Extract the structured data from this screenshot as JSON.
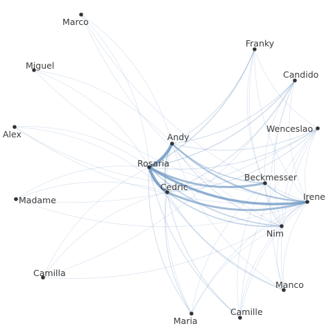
{
  "diagram": {
    "type": "network",
    "edge_color": "#6f98c4",
    "node_color": "#333333",
    "label_color": "#3a3a3a"
  },
  "nodes": [
    {
      "id": "marco",
      "label": "Marco"
    },
    {
      "id": "franky",
      "label": "Franky"
    },
    {
      "id": "miguel",
      "label": "Miguel"
    },
    {
      "id": "candido",
      "label": "Candido"
    },
    {
      "id": "alex",
      "label": "Alex"
    },
    {
      "id": "wenceslao",
      "label": "Wenceslao"
    },
    {
      "id": "andy",
      "label": "Andy"
    },
    {
      "id": "rosaria",
      "label": "Rosaria"
    },
    {
      "id": "beckmesser",
      "label": "Beckmesser"
    },
    {
      "id": "cedric",
      "label": "Cedric"
    },
    {
      "id": "irene",
      "label": "Irene"
    },
    {
      "id": "madame",
      "label": "Madame"
    },
    {
      "id": "nim",
      "label": "Nim"
    },
    {
      "id": "camilla",
      "label": "Camilla"
    },
    {
      "id": "manco",
      "label": "Manco"
    },
    {
      "id": "camille",
      "label": "Camille"
    },
    {
      "id": "maria",
      "label": "Maria"
    }
  ],
  "edges": [
    {
      "source": "rosaria",
      "target": "andy",
      "weight": 6
    },
    {
      "source": "rosaria",
      "target": "cedric",
      "weight": 6
    },
    {
      "source": "rosaria",
      "target": "irene",
      "weight": 5
    },
    {
      "source": "rosaria",
      "target": "beckmesser",
      "weight": 4
    },
    {
      "source": "andy",
      "target": "irene",
      "weight": 3
    },
    {
      "source": "andy",
      "target": "beckmesser",
      "weight": 2
    },
    {
      "source": "cedric",
      "target": "irene",
      "weight": 4
    },
    {
      "source": "cedric",
      "target": "nim",
      "weight": 2
    },
    {
      "source": "rosaria",
      "target": "nim",
      "weight": 2
    },
    {
      "source": "andy",
      "target": "cedric",
      "weight": 2
    },
    {
      "source": "beckmesser",
      "target": "irene",
      "weight": 2
    },
    {
      "source": "beckmesser",
      "target": "nim",
      "weight": 1
    },
    {
      "source": "irene",
      "target": "nim",
      "weight": 1
    },
    {
      "source": "rosaria",
      "target": "franky",
      "weight": 1.5
    },
    {
      "source": "andy",
      "target": "franky",
      "weight": 1
    },
    {
      "source": "rosaria",
      "target": "candido",
      "weight": 1.5
    },
    {
      "source": "andy",
      "target": "candido",
      "weight": 1
    },
    {
      "source": "cedric",
      "target": "candido",
      "weight": 1
    },
    {
      "source": "rosaria",
      "target": "wenceslao",
      "weight": 1
    },
    {
      "source": "andy",
      "target": "wenceslao",
      "weight": 1
    },
    {
      "source": "cedric",
      "target": "wenceslao",
      "weight": 1
    },
    {
      "source": "rosaria",
      "target": "manco",
      "weight": 1
    },
    {
      "source": "cedric",
      "target": "manco",
      "weight": 1
    },
    {
      "source": "rosaria",
      "target": "camille",
      "weight": 1
    },
    {
      "source": "cedric",
      "target": "camille",
      "weight": 1
    },
    {
      "source": "rosaria",
      "target": "maria",
      "weight": 1
    },
    {
      "source": "cedric",
      "target": "maria",
      "weight": 1
    },
    {
      "source": "rosaria",
      "target": "marco",
      "weight": 0.5
    },
    {
      "source": "rosaria",
      "target": "miguel",
      "weight": 0.5
    },
    {
      "source": "rosaria",
      "target": "alex",
      "weight": 0.5
    },
    {
      "source": "rosaria",
      "target": "madame",
      "weight": 0.5
    },
    {
      "source": "rosaria",
      "target": "camilla",
      "weight": 0.5
    },
    {
      "source": "andy",
      "target": "marco",
      "weight": 0.5
    },
    {
      "source": "andy",
      "target": "miguel",
      "weight": 0.5
    },
    {
      "source": "cedric",
      "target": "alex",
      "weight": 0.5
    },
    {
      "source": "cedric",
      "target": "madame",
      "weight": 0.5
    },
    {
      "source": "cedric",
      "target": "camilla",
      "weight": 0.5
    },
    {
      "source": "marco",
      "target": "nim",
      "weight": 0.5
    },
    {
      "source": "marco",
      "target": "irene",
      "weight": 0.5
    },
    {
      "source": "miguel",
      "target": "irene",
      "weight": 0.5
    },
    {
      "source": "alex",
      "target": "irene",
      "weight": 0.5
    },
    {
      "source": "alex",
      "target": "beckmesser",
      "weight": 0.5
    },
    {
      "source": "madame",
      "target": "irene",
      "weight": 0.5
    },
    {
      "source": "madame",
      "target": "wenceslao",
      "weight": 0.5
    },
    {
      "source": "camilla",
      "target": "irene",
      "weight": 0.5
    },
    {
      "source": "camilla",
      "target": "candido",
      "weight": 0.5
    },
    {
      "source": "franky",
      "target": "irene",
      "weight": 0.5
    },
    {
      "source": "franky",
      "target": "nim",
      "weight": 0.5
    },
    {
      "source": "franky",
      "target": "beckmesser",
      "weight": 0.5
    },
    {
      "source": "franky",
      "target": "wenceslao",
      "weight": 0.5
    },
    {
      "source": "candido",
      "target": "irene",
      "weight": 0.5
    },
    {
      "source": "candido",
      "target": "nim",
      "weight": 0.5
    },
    {
      "source": "candido",
      "target": "beckmesser",
      "weight": 0.5
    },
    {
      "source": "candido",
      "target": "manco",
      "weight": 0.5
    },
    {
      "source": "wenceslao",
      "target": "irene",
      "weight": 0.5
    },
    {
      "source": "wenceslao",
      "target": "nim",
      "weight": 0.5
    },
    {
      "source": "wenceslao",
      "target": "manco",
      "weight": 0.5
    },
    {
      "source": "wenceslao",
      "target": "camille",
      "weight": 0.5
    },
    {
      "source": "irene",
      "target": "manco",
      "weight": 0.5
    },
    {
      "source": "irene",
      "target": "camille",
      "weight": 0.5
    },
    {
      "source": "irene",
      "target": "maria",
      "weight": 0.5
    },
    {
      "source": "nim",
      "target": "manco",
      "weight": 0.5
    },
    {
      "source": "nim",
      "target": "camille",
      "weight": 0.5
    },
    {
      "source": "nim",
      "target": "maria",
      "weight": 0.5
    },
    {
      "source": "beckmesser",
      "target": "maria",
      "weight": 0.5
    },
    {
      "source": "beckmesser",
      "target": "camille",
      "weight": 0.5
    },
    {
      "source": "andy",
      "target": "nim",
      "weight": 1
    },
    {
      "source": "andy",
      "target": "maria",
      "weight": 0.5
    },
    {
      "source": "andy",
      "target": "manco",
      "weight": 0.5
    }
  ]
}
